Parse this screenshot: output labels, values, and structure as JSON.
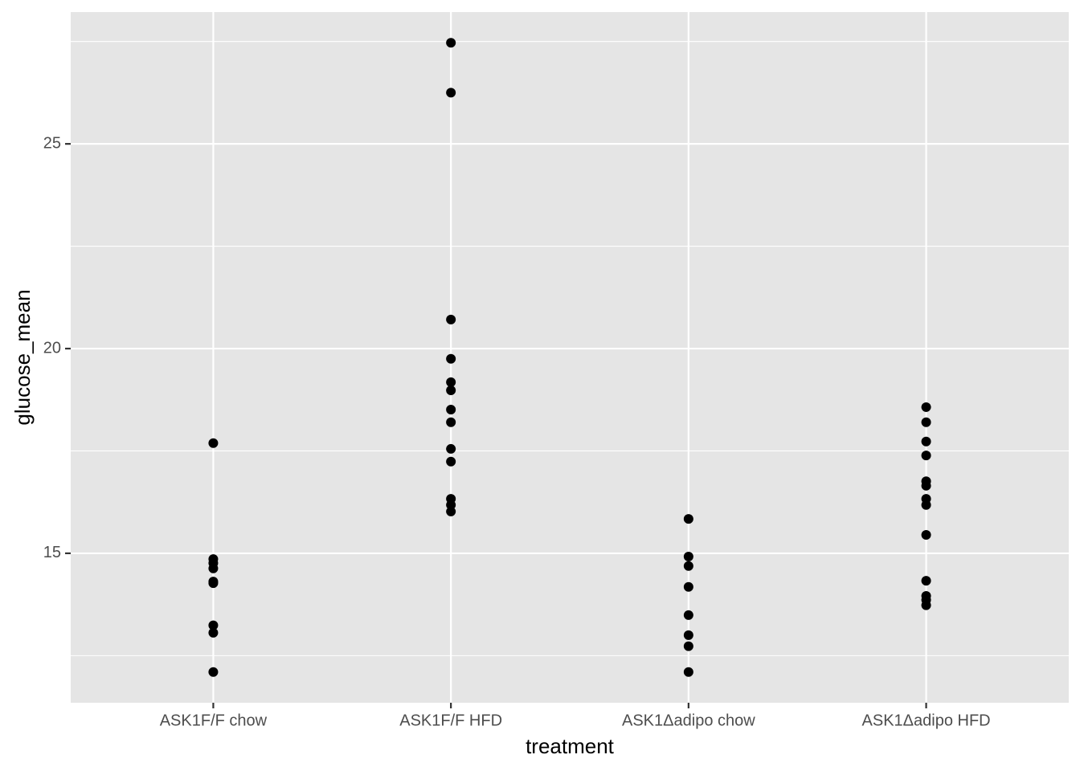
{
  "chart_data": {
    "type": "strip",
    "x_label": "treatment",
    "y_label": "glucose_mean",
    "categories": [
      "ASK1F/F chow",
      "ASK1F/F HFD",
      "ASK1Δadipo chow",
      "ASK1Δadipo HFD"
    ],
    "values": [
      [
        17.69,
        14.86,
        14.76,
        14.63,
        14.31,
        14.27,
        13.24,
        13.06,
        12.1
      ],
      [
        27.47,
        26.25,
        20.71,
        19.75,
        19.18,
        18.98,
        18.51,
        18.2,
        17.55,
        17.24,
        16.33,
        16.18,
        16.02
      ],
      [
        15.84,
        14.92,
        14.69,
        14.18,
        13.49,
        13.0,
        12.73,
        12.1
      ],
      [
        18.57,
        18.2,
        17.73,
        17.39,
        16.76,
        16.65,
        16.33,
        16.18,
        15.45,
        14.33,
        13.96,
        13.86,
        13.73
      ]
    ],
    "color": "#000000",
    "ylim": [
      11.35,
      28.22
    ],
    "yticks": [
      15,
      20,
      25
    ],
    "y_minor_grid": [
      12.5,
      17.5,
      22.5,
      27.5
    ],
    "grid": true,
    "panel_color": "#e5e5e5"
  }
}
